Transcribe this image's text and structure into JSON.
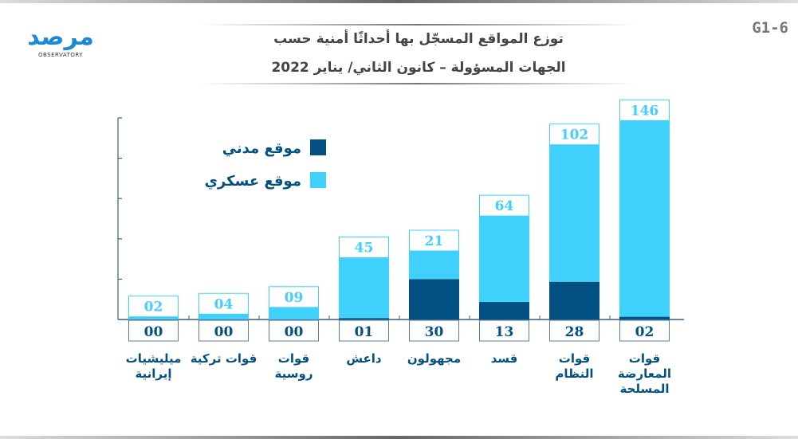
{
  "header": {
    "title_line1": "توزع المواقع المسجّل بها أحداثًا أمنية حسب",
    "title_line2": "الجهات المسؤولة – كانون الثاني/ يناير 2022",
    "chart_code": "G1-6",
    "logo_text": "مرصد",
    "logo_subtext": "OBSERVATORY"
  },
  "colors": {
    "civil": "#025182",
    "military": "#40d0fc",
    "axis": "#3a5f80"
  },
  "chart_data": {
    "type": "bar",
    "stacked": true,
    "title": "توزع المواقع المسجّل بها أحداثًا أمنية حسب الجهات المسؤولة – كانون الثاني/ يناير 2022",
    "categories": [
      "ميليشيات إيرانية",
      "قوات تركية",
      "قوات روسية",
      "داعش",
      "مجهولون",
      "قسد",
      "قوات النظام",
      "قوات المعارضة المسلحة"
    ],
    "category_lines": [
      [
        "ميليشيات",
        "إيرانية"
      ],
      [
        "قوات تركية"
      ],
      [
        "قوات روسية"
      ],
      [
        "داعش"
      ],
      [
        "مجهولون"
      ],
      [
        "قسد"
      ],
      [
        "قوات",
        "النظام"
      ],
      [
        "قوات",
        "المعارضة",
        "المسلحة"
      ]
    ],
    "series": [
      {
        "name": "موقع مدني",
        "values": [
          0,
          0,
          0,
          1,
          30,
          13,
          28,
          2
        ],
        "labels": [
          "00",
          "00",
          "00",
          "01",
          "30",
          "13",
          "28",
          "02"
        ]
      },
      {
        "name": "موقع عسكري",
        "values": [
          2,
          4,
          9,
          45,
          21,
          64,
          102,
          146
        ],
        "labels": [
          "02",
          "04",
          "09",
          "45",
          "21",
          "64",
          "102",
          "146"
        ]
      }
    ],
    "ylim": [
      0,
      150
    ],
    "yticks": [
      0,
      30,
      60,
      90,
      120,
      150
    ],
    "grid": false,
    "legend": "top-left"
  }
}
